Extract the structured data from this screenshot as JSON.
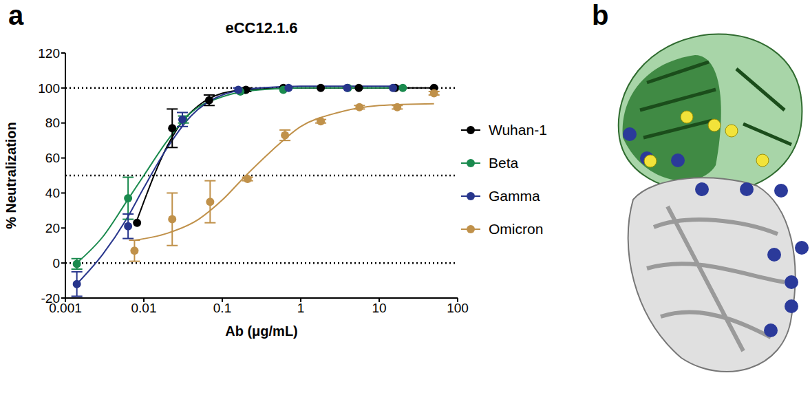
{
  "panel_labels": [
    "a",
    "b"
  ],
  "chart_data": {
    "type": "scatter",
    "title": "eCC12.1.6",
    "x_label": "Ab (μg/mL)",
    "y_label": "% Neutralization",
    "log": "x",
    "xlim": [
      0.001,
      100
    ],
    "xticks": [
      0.001,
      0.01,
      0.1,
      1,
      10,
      100
    ],
    "ylim": [
      -20,
      120
    ],
    "yticks": [
      -20,
      0,
      20,
      40,
      60,
      80,
      100,
      120
    ],
    "reference_lines": [
      0,
      50,
      100
    ],
    "legend": "right",
    "marker": "circle",
    "series": [
      {
        "name": "Wuhan-1",
        "color": "#000000",
        "x": [
          0.0082,
          0.023,
          0.068,
          0.2,
          0.6,
          1.8,
          5.5,
          16,
          50
        ],
        "values": [
          23,
          77,
          93,
          99,
          100,
          100,
          100,
          100,
          100
        ],
        "error": [
          0,
          11,
          3,
          1,
          0,
          0,
          0,
          0,
          0
        ],
        "fit": {
          "x": [
            0.0078,
            0.01,
            0.015,
            0.02,
            0.03,
            0.05,
            0.1,
            0.2,
            1,
            50
          ],
          "values": [
            22,
            35,
            55,
            67,
            80,
            90,
            97,
            99,
            100,
            100
          ]
        }
      },
      {
        "name": "Beta",
        "color": "#1a8a4e",
        "x": [
          0.0014,
          0.0063,
          0.032,
          0.17,
          0.6,
          4,
          20
        ],
        "values": [
          -0.5,
          37,
          82,
          98,
          99,
          100,
          100
        ],
        "error": [
          3,
          12,
          2,
          1,
          0,
          0,
          0
        ],
        "fit": {
          "x": [
            0.0014,
            0.003,
            0.006,
            0.01,
            0.02,
            0.04,
            0.1,
            0.3,
            1,
            20
          ],
          "values": [
            0,
            15,
            35,
            50,
            70,
            86,
            95,
            99,
            100,
            100
          ]
        }
      },
      {
        "name": "Gamma",
        "color": "#27358c",
        "x": [
          0.0014,
          0.0063,
          0.031,
          0.16,
          0.7,
          3.9,
          15
        ],
        "values": [
          -12,
          21,
          82,
          99,
          100,
          100,
          100
        ],
        "error": [
          7,
          7,
          4,
          1,
          0,
          0,
          0
        ],
        "fit": {
          "x": [
            0.0014,
            0.003,
            0.006,
            0.01,
            0.02,
            0.04,
            0.1,
            0.3,
            1,
            20
          ],
          "values": [
            -12,
            5,
            25,
            43,
            66,
            84,
            96,
            100,
            101,
            101
          ]
        }
      },
      {
        "name": "Omicron",
        "color": "#c0914a",
        "x": [
          0.0076,
          0.023,
          0.07,
          0.21,
          0.63,
          1.8,
          5.6,
          17,
          50
        ],
        "values": [
          7,
          25,
          35,
          48,
          73,
          81,
          89,
          89,
          97
        ],
        "error": [
          6,
          15,
          12,
          1,
          3,
          1,
          1,
          1,
          1
        ],
        "fit": {
          "x": [
            0.0076,
            0.02,
            0.05,
            0.1,
            0.2,
            0.4,
            1,
            3,
            10,
            50
          ],
          "values": [
            13,
            17,
            25,
            36,
            50,
            63,
            78,
            86,
            90,
            91
          ]
        }
      }
    ]
  }
}
